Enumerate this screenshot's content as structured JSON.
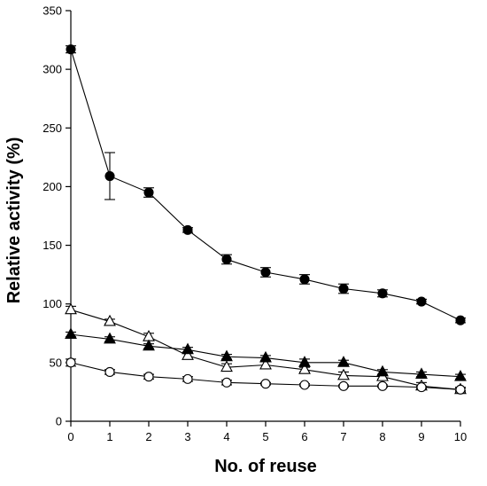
{
  "chart_data": {
    "type": "line",
    "title": "",
    "xlabel": "No. of reuse",
    "ylabel": "Relative activity (%)",
    "xlim": [
      0,
      10
    ],
    "ylim": [
      0,
      350
    ],
    "x_ticks": [
      "0",
      "1",
      "2",
      "3",
      "4",
      "5",
      "6",
      "7",
      "8",
      "9",
      "10"
    ],
    "y_ticks": [
      "0",
      "50",
      "100",
      "150",
      "200",
      "250",
      "300",
      "350"
    ],
    "grid": false,
    "legend": "none",
    "x": [
      0,
      1,
      2,
      3,
      4,
      5,
      6,
      7,
      8,
      9,
      10
    ],
    "series": [
      {
        "marker": "filled-circle",
        "color": "#000000",
        "values": [
          317,
          209,
          195,
          163,
          138,
          127,
          121,
          113,
          109,
          102,
          86
        ],
        "errors": [
          3,
          20,
          4,
          2,
          4,
          4,
          4,
          4,
          3,
          2,
          2
        ]
      },
      {
        "marker": "open-triangle",
        "color": "#000000",
        "values": [
          95,
          85,
          72,
          56,
          46,
          48,
          44,
          39,
          38,
          30,
          27
        ],
        "errors": [
          3,
          2,
          3,
          3,
          3,
          3,
          2,
          3,
          2,
          3,
          2
        ]
      },
      {
        "marker": "filled-triangle",
        "color": "#000000",
        "values": [
          74,
          70,
          64,
          61,
          55,
          54,
          50,
          50,
          42,
          40,
          38
        ],
        "errors": [
          2,
          2,
          2,
          2,
          2,
          2,
          3,
          2,
          2,
          2,
          2
        ]
      },
      {
        "marker": "open-circle",
        "color": "#000000",
        "values": [
          50,
          42,
          38,
          36,
          33,
          32,
          31,
          30,
          30,
          29,
          27
        ],
        "errors": [
          3,
          2,
          2,
          2,
          2,
          1,
          1,
          1,
          1,
          1,
          1
        ]
      }
    ]
  }
}
